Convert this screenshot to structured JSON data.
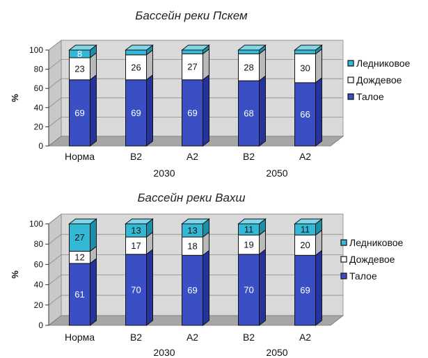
{
  "colors": {
    "glacier": "#33b9d6",
    "glacier_side": "#1e8ea8",
    "glacier_top": "#7fd8ea",
    "rain": "#ffffff",
    "rain_side": "#b9b9b9",
    "rain_top": "#e6e6e6",
    "melt": "#3a4fc4",
    "melt_side": "#26339a",
    "melt_top": "#6f80e0",
    "wall": "#d9d9d9",
    "floor": "#a6a6a6"
  },
  "chart_data": [
    {
      "type": "bar",
      "stacked": true,
      "title": "Бассейн реки Пскем",
      "ylabel": "%",
      "ylim": [
        0,
        100
      ],
      "yticks": [
        "0",
        "20",
        "40",
        "60",
        "80",
        "100"
      ],
      "categories": [
        "Норма",
        "B2",
        "A2",
        "B2",
        "A2"
      ],
      "groups": [
        {
          "label": "2030",
          "span": [
            1,
            2
          ]
        },
        {
          "label": "2050",
          "span": [
            3,
            4
          ]
        }
      ],
      "series": [
        {
          "name": "Талое",
          "key": "melt",
          "values": [
            69,
            69,
            69,
            68,
            66
          ],
          "labels": [
            "69",
            "69",
            "69",
            "68",
            "66"
          ]
        },
        {
          "name": "Дождевое",
          "key": "rain",
          "values": [
            23,
            26,
            27,
            28,
            30
          ],
          "labels": [
            "23",
            "26",
            "27",
            "28",
            "30"
          ]
        },
        {
          "name": "Ледниковое",
          "key": "glacier",
          "values": [
            8,
            5,
            4,
            4,
            4
          ],
          "labels": [
            "8",
            "",
            "",
            "",
            ""
          ]
        }
      ],
      "legend": [
        "Ледниковое",
        "Дождевое",
        "Талое"
      ],
      "legend_position": "right"
    },
    {
      "type": "bar",
      "stacked": true,
      "title": "Бассейн реки Вахш",
      "ylabel": "%",
      "ylim": [
        0,
        100
      ],
      "yticks": [
        "0",
        "20",
        "40",
        "60",
        "80",
        "100"
      ],
      "categories": [
        "Норма",
        "B2",
        "A2",
        "B2",
        "A2"
      ],
      "groups": [
        {
          "label": "2030",
          "span": [
            1,
            2
          ]
        },
        {
          "label": "2050",
          "span": [
            3,
            4
          ]
        }
      ],
      "series": [
        {
          "name": "Талое",
          "key": "melt",
          "values": [
            61,
            70,
            69,
            70,
            69
          ],
          "labels": [
            "61",
            "70",
            "69",
            "70",
            "69"
          ]
        },
        {
          "name": "Дождевое",
          "key": "rain",
          "values": [
            12,
            17,
            18,
            19,
            20
          ],
          "labels": [
            "12",
            "17",
            "18",
            "19",
            "20"
          ]
        },
        {
          "name": "Ледниковое",
          "key": "glacier",
          "values": [
            27,
            13,
            13,
            11,
            11
          ],
          "labels": [
            "27",
            "13",
            "13",
            "11",
            "11"
          ]
        }
      ],
      "legend": [
        "Ледниковое",
        "Дождевое",
        "Талое"
      ],
      "legend_position": "right"
    }
  ]
}
